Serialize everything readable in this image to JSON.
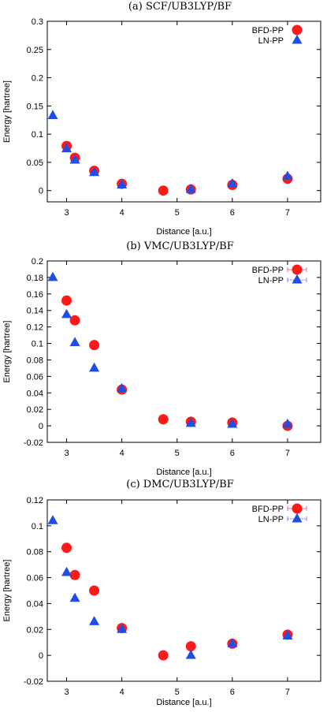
{
  "chart_data": [
    {
      "type": "scatter",
      "title": "(a)  SCF/UB3LYP/BF",
      "xlabel": "Distance [a.u.]",
      "ylabel": "Energy [hartree]",
      "xlim": [
        2.65,
        7.6
      ],
      "ylim": [
        -0.02,
        0.3
      ],
      "xticks": [
        "3",
        "4",
        "5",
        "6",
        "7"
      ],
      "yticks": [
        "0",
        "0.05",
        "0.1",
        "0.15",
        "0.2",
        "0.25",
        "0.3"
      ],
      "legend_position": "top-right",
      "legend_errorbars": false,
      "series": [
        {
          "name": "BFD-PP",
          "marker": "circle",
          "color": "#ff1a1a",
          "x": [
            3.0,
            3.15,
            3.5,
            4.0,
            4.75,
            5.25,
            6.0,
            7.0
          ],
          "y": [
            0.079,
            0.058,
            0.035,
            0.012,
            0.0,
            0.002,
            0.01,
            0.021
          ]
        },
        {
          "name": "LN-PP",
          "marker": "triangle",
          "color": "#1f4ee6",
          "x": [
            2.75,
            3.0,
            3.15,
            3.5,
            4.0,
            5.25,
            6.0,
            7.0
          ],
          "y": [
            0.133,
            0.074,
            0.054,
            0.032,
            0.01,
            0.002,
            0.012,
            0.025
          ]
        }
      ]
    },
    {
      "type": "scatter",
      "title": "(b)  VMC/UB3LYP/BF",
      "xlabel": "Distance [a.u.]",
      "ylabel": "Energy [hartree]",
      "xlim": [
        2.65,
        7.6
      ],
      "ylim": [
        -0.02,
        0.2
      ],
      "xticks": [
        "3",
        "4",
        "5",
        "6",
        "7"
      ],
      "yticks": [
        "-0.02",
        "0",
        "0.02",
        "0.04",
        "0.06",
        "0.08",
        "0.1",
        "0.12",
        "0.14",
        "0.16",
        "0.18",
        "0.2"
      ],
      "legend_position": "top-right",
      "legend_errorbars": true,
      "series": [
        {
          "name": "BFD-PP",
          "marker": "circle",
          "color": "#ff1a1a",
          "x": [
            3.0,
            3.15,
            3.5,
            4.0,
            4.75,
            5.25,
            6.0,
            7.0
          ],
          "y": [
            0.152,
            0.128,
            0.098,
            0.044,
            0.008,
            0.005,
            0.004,
            0.0
          ]
        },
        {
          "name": "LN-PP",
          "marker": "triangle",
          "color": "#1f4ee6",
          "x": [
            2.75,
            3.0,
            3.15,
            3.5,
            4.0,
            5.25,
            6.0,
            7.0
          ],
          "y": [
            0.18,
            0.135,
            0.101,
            0.07,
            0.045,
            0.003,
            0.002,
            0.002
          ]
        }
      ]
    },
    {
      "type": "scatter",
      "title": "(c)  DMC/UB3LYP/BF",
      "xlabel": "Distance [a.u.]",
      "ylabel": "Energy [hartree]",
      "xlim": [
        2.65,
        7.6
      ],
      "ylim": [
        -0.02,
        0.12
      ],
      "xticks": [
        "3",
        "4",
        "5",
        "6",
        "7"
      ],
      "yticks": [
        "-0.02",
        "0",
        "0.02",
        "0.04",
        "0.06",
        "0.08",
        "0.1",
        "0.12"
      ],
      "legend_position": "top-right",
      "legend_errorbars": true,
      "series": [
        {
          "name": "BFD-PP",
          "marker": "circle",
          "color": "#ff1a1a",
          "x": [
            3.0,
            3.15,
            3.5,
            4.0,
            4.75,
            5.25,
            6.0,
            7.0
          ],
          "y": [
            0.083,
            0.062,
            0.05,
            0.021,
            0.0,
            0.007,
            0.009,
            0.016
          ]
        },
        {
          "name": "LN-PP",
          "marker": "triangle",
          "color": "#1f4ee6",
          "x": [
            2.75,
            3.0,
            3.15,
            3.5,
            4.0,
            5.25,
            6.0,
            7.0
          ],
          "y": [
            0.104,
            0.064,
            0.044,
            0.026,
            0.02,
            0.0,
            0.009,
            0.015
          ]
        }
      ]
    }
  ]
}
